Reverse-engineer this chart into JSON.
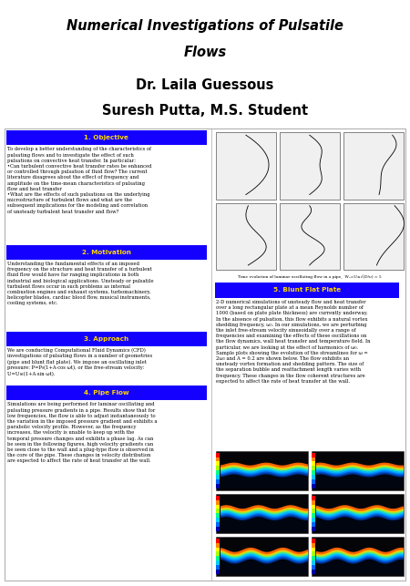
{
  "title_line1": "Numerical Investigations of Pulsatile",
  "title_line2": "Flows",
  "title_bg_color": "#1400FF",
  "title_text_color": "#000000",
  "author_line1": "Dr. Laila Guessous",
  "author_line2": "Suresh Putta, M.S. Student",
  "section1_title": "1. Objective",
  "section1_text": "To develop a better understanding of the characteristics of\npulsating flows and to investigate the effect of such\npulsations on convective heat transfer. In particular:\n•Can turbulent convective heat transfer rates be enhanced\nor controlled through pulsation of fluid flow? The current\nliterature disagrees about the effect of frequency and\namplitude on the time-mean characteristics of pulsating\nflow and heat transfer\n•What are the effects of such pulsations on the underlying\nmicrostructure of turbulent flows and what are the\nsubsequent implications for the modeling and correlation\nof unsteady turbulent heat transfer and flow?",
  "section2_title": "2. Motivation",
  "section2_text": "Understanding the fundamental effects of an imposed\nfrequency on the structure and heat transfer of a turbulent\nfluid flow would have far ranging implications in both\nindustrial and biological applications. Unsteady or pulsatile\nturbulent flows occur in such problems as internal\ncombustion engines and exhaust systems, turbomachinery,\nhelicopter blades, cardiac blood flow, musical instruments,\ncooling systems, etc.",
  "section3_title": "3. Approach",
  "section3_text": "We are conducting Computational Fluid Dynamics (CFD)\ninvestigations of pulsating flows in a number of geometries\n(pipe and blunt flat plate). We impose an oscillating inlet\npressure: P=P₀(1+A·cos ωt), or the free-stream velocity:\nU=U∞(1+A·sin ωt).",
  "section4_title": "4. Pipe Flow",
  "section4_text": "Simulations are being performed for laminar oscillating and\npulsating pressure gradients in a pipe. Results show that for\nlow frequencies, the flow is able to adjust instantaneously to\nthe variation in the imposed pressure gradient and exhibits a\nparabolic velocity profile. However, as the frequency\nincreases, the velocity is unable to keep up with the\ntemporal pressure changes and exhibits a phase lag. As can\nbe seen in the following figures, high velocity gradients can\nbe seen close to the wall and a plug-type flow is observed in\nthe core of the pipe. These changes in velocity distribution\nare expected to affect the rate of heat transfer at the wall.",
  "section5_title": "5. Blunt Flat Plate",
  "section5_text": "2-D numerical simulations of unsteady flow and heat transfer\nover a long rectangular plate at a mean Reynolds number of\n1000 (based on plate plate thickness) are currently underway.\nIn the absence of pulsation, this flow exhibits a natural vortex\nshedding frequency, ω₀. In our simulations, we are perturbing\nthe inlet free-stream velocity sinusoidally over a range of\nfrequencies and examining the effects of these oscillations on\nthe flow dynamics, wall heat transfer and temperature field. In\nparticular, we are looking at the effect of harmonics of ω₀.\nSample plots showing the evolution of the streamlines for ω =\n2ω₀ and A = 0.2 are shown below. The flow exhibits an\nunsteady vortex formation and shedding pattern. The size of\nthe separation bubble and reattachment length varies with\nfrequency. These changes in the flow coherent structures are\nexpected to affect the rate of heat transfer at the wall.",
  "pipe_fig_caption": "Time evolution of laminar oscillating flow in a pipe,  W₀=U∞√(D/ν) = 5",
  "section_header_bg": "#1400FF",
  "section_header_text": "#FFD700",
  "body_text_color": "#000000",
  "bg_color": "#FFFFFF",
  "border_color": "#AAAAAA"
}
